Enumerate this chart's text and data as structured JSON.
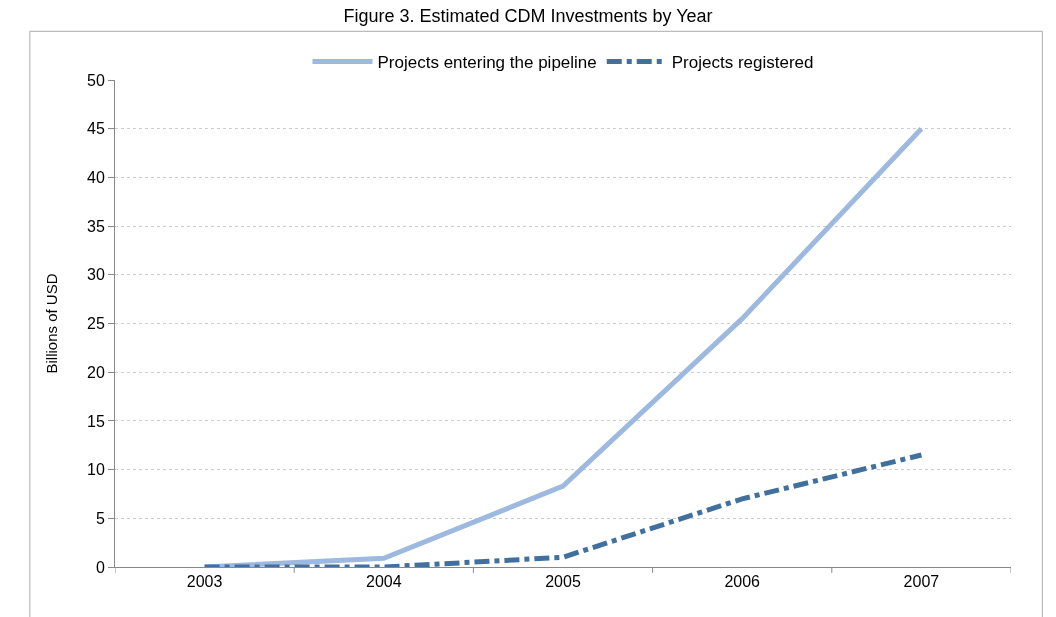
{
  "chart_data": {
    "type": "line",
    "title": "Figure 3. Estimated CDM Investments by Year",
    "ylabel": "Billions of USD",
    "categories": [
      "2003",
      "2004",
      "2005",
      "2006",
      "2007"
    ],
    "series": [
      {
        "name": "Projects entering the pipeline",
        "color": "#9db9e0",
        "values": [
          0,
          0.9,
          8.3,
          25.5,
          45
        ],
        "line_style": "solid"
      },
      {
        "name": "Projects registered",
        "color": "#41709f",
        "values": [
          0,
          0,
          1,
          7,
          11.5
        ],
        "line_style": "dashed"
      }
    ],
    "ylim": [
      0,
      50
    ],
    "yticks": [
      0,
      5,
      10,
      15,
      20,
      25,
      30,
      35,
      40,
      45,
      50
    ],
    "grid": "y",
    "legend": "top",
    "marker": "none"
  }
}
